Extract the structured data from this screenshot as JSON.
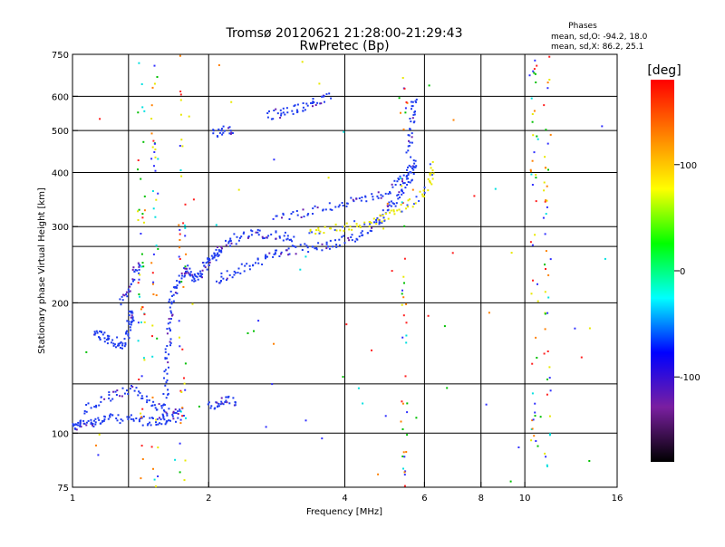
{
  "chart_data": {
    "type": "scatter",
    "title": "Tromsø 20120621 21:28:00-21:29:43",
    "subtitle": "RwPretec (Bp)",
    "xlabel": "Frequency [MHz]",
    "ylabel": "Stationary phase Virtual Height [km]",
    "x_scale": "log",
    "y_scale": "log",
    "xlim": [
      1,
      16
    ],
    "ylim": [
      75,
      750
    ],
    "x_ticks": [
      1,
      2,
      4,
      6,
      8,
      10,
      16
    ],
    "y_ticks": [
      75,
      100,
      200,
      300,
      400,
      500,
      600,
      750
    ],
    "x_grid": [
      1.33,
      2,
      4,
      6,
      8,
      10
    ],
    "y_grid": [
      100,
      130,
      200,
      270,
      300,
      400,
      500,
      600,
      750
    ],
    "grid": true,
    "legend": {
      "title": "Phases",
      "lines": [
        "mean, sd,O:  -94.2, 18.0",
        "mean, sd,X:  86.2, 25.1"
      ]
    },
    "colorbar": {
      "label": "[deg]",
      "range": [
        -180,
        180
      ],
      "ticks": [
        100,
        0,
        -100
      ],
      "tick_labels": [
        "100",
        "0",
        "-100"
      ],
      "colors": [
        "#000000",
        "#7a1fa0",
        "#0000ff",
        "#00ffff",
        "#00ff00",
        "#ffff00",
        "#ff8000",
        "#ff0000"
      ]
    },
    "series": [
      {
        "mode": "O",
        "color": "#1e3cf0",
        "segments": [
          [
            [
              1.0,
              103
            ],
            [
              1.02,
              104
            ],
            [
              1.05,
              105
            ],
            [
              1.1,
              106
            ],
            [
              1.15,
              107
            ],
            [
              1.2,
              108
            ],
            [
              1.3,
              108
            ],
            [
              1.4,
              107
            ],
            [
              1.5,
              106
            ],
            [
              1.6,
              107
            ],
            [
              1.7,
              108
            ]
          ],
          [
            [
              1.05,
              112
            ],
            [
              1.15,
              118
            ],
            [
              1.25,
              123
            ],
            [
              1.35,
              126
            ],
            [
              1.45,
              120
            ],
            [
              1.55,
              115
            ],
            [
              1.65,
              112
            ],
            [
              1.75,
              110
            ]
          ],
          [
            [
              1.12,
              172
            ],
            [
              1.15,
              168
            ],
            [
              1.2,
              165
            ],
            [
              1.25,
              162
            ],
            [
              1.3,
              158
            ],
            [
              1.33,
              175
            ],
            [
              1.35,
              185
            ],
            [
              1.36,
              190
            ]
          ],
          [
            [
              1.28,
              200
            ],
            [
              1.33,
              215
            ],
            [
              1.38,
              235
            ],
            [
              1.42,
              245
            ]
          ],
          [
            [
              1.6,
              106
            ],
            [
              1.61,
              125
            ],
            [
              1.62,
              145
            ],
            [
              1.63,
              165
            ],
            [
              1.64,
              185
            ],
            [
              1.66,
              205
            ],
            [
              1.7,
              220
            ],
            [
              1.75,
              232
            ],
            [
              1.8,
              240
            ],
            [
              1.85,
              228
            ],
            [
              1.9,
              232
            ],
            [
              1.95,
              238
            ]
          ],
          [
            [
              1.95,
              240
            ],
            [
              2.0,
              248
            ],
            [
              2.05,
              255
            ],
            [
              2.1,
              262
            ],
            [
              2.2,
              272
            ],
            [
              2.3,
              282
            ],
            [
              2.5,
              290
            ],
            [
              2.7,
              288
            ],
            [
              2.9,
              284
            ],
            [
              3.1,
              283
            ]
          ],
          [
            [
              2.1,
              225
            ],
            [
              2.2,
              232
            ],
            [
              2.4,
              240
            ],
            [
              2.6,
              250
            ],
            [
              2.8,
              258
            ],
            [
              3.0,
              264
            ],
            [
              3.3,
              268
            ],
            [
              3.6,
              271
            ],
            [
              3.9,
              276
            ],
            [
              4.2,
              283
            ],
            [
              4.5,
              294
            ],
            [
              4.8,
              310
            ],
            [
              5.0,
              330
            ],
            [
              5.2,
              350
            ],
            [
              5.4,
              370
            ],
            [
              5.6,
              395
            ],
            [
              5.75,
              420
            ]
          ],
          [
            [
              2.8,
              317
            ],
            [
              3.2,
              322
            ],
            [
              3.6,
              330
            ],
            [
              4.0,
              340
            ],
            [
              4.4,
              345
            ],
            [
              4.8,
              355
            ],
            [
              5.2,
              375
            ],
            [
              5.5,
              400
            ],
            [
              5.7,
              430
            ]
          ],
          [
            [
              2.7,
              540
            ],
            [
              2.9,
              550
            ],
            [
              3.1,
              560
            ],
            [
              3.3,
              570
            ],
            [
              3.5,
              585
            ],
            [
              3.7,
              600
            ]
          ],
          [
            [
              2.05,
              490
            ],
            [
              2.15,
              500
            ],
            [
              2.3,
              505
            ]
          ],
          [
            [
              5.55,
              450
            ],
            [
              5.6,
              500
            ],
            [
              5.65,
              550
            ],
            [
              5.7,
              600
            ]
          ],
          [
            [
              2.0,
              115
            ],
            [
              2.1,
              118
            ],
            [
              2.2,
              120
            ],
            [
              2.3,
              117
            ]
          ]
        ]
      },
      {
        "mode": "X",
        "color": "#e8e800",
        "segments": [
          [
            [
              3.3,
              292
            ],
            [
              3.6,
              297
            ],
            [
              4.0,
              300
            ],
            [
              4.4,
              305
            ],
            [
              4.8,
              312
            ],
            [
              5.2,
              325
            ],
            [
              5.6,
              340
            ],
            [
              6.0,
              365
            ],
            [
              6.2,
              390
            ],
            [
              6.25,
              420
            ]
          ]
        ]
      },
      {
        "mode": "noise",
        "color": "#mixed",
        "columns": [
          1.42,
          1.52,
          1.75,
          5.4,
          10.5,
          11.2
        ]
      }
    ]
  }
}
